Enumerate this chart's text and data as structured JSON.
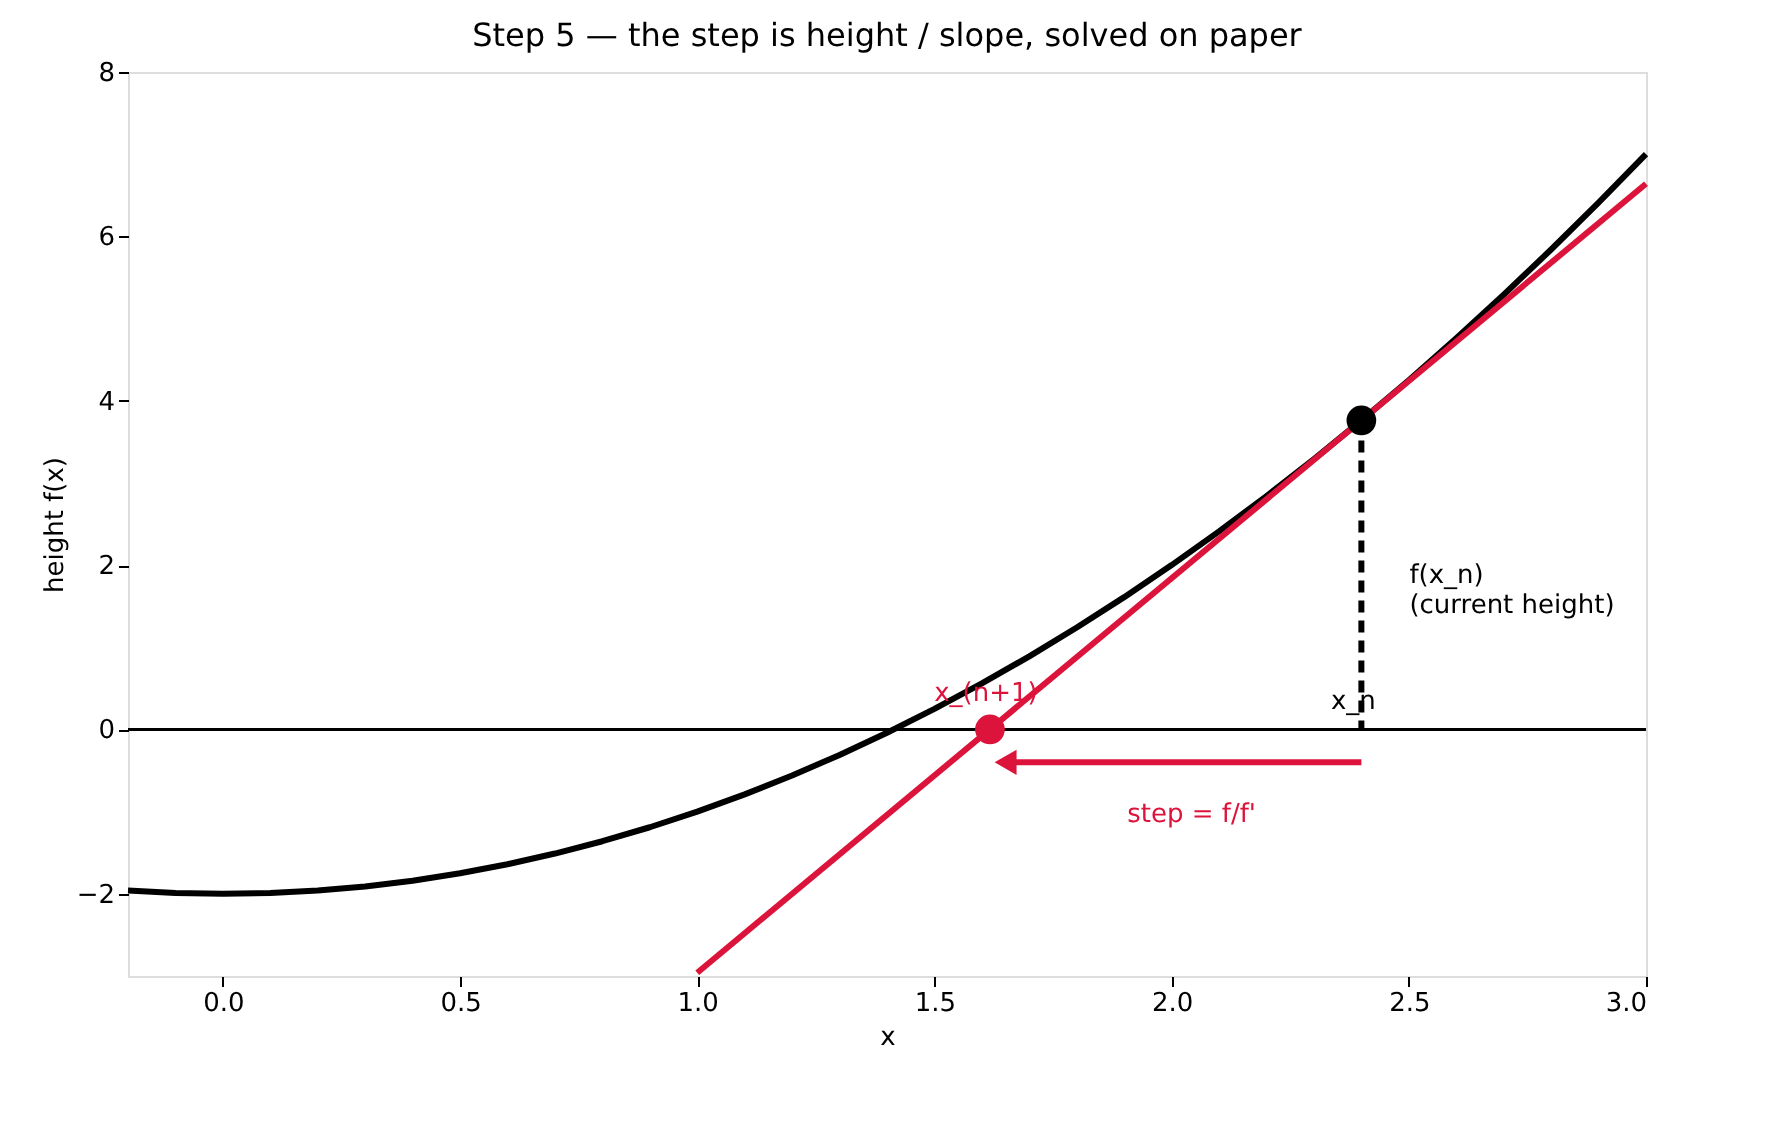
{
  "chart_data": {
    "type": "line",
    "title": "Step 5 — the step is height / slope, solved on paper",
    "xlabel": "x",
    "ylabel": "height  f(x)",
    "xlim": [
      -0.2,
      3.0
    ],
    "xticks": [
      {
        "value": 0,
        "label": "0.0"
      },
      0.5,
      {
        "value": 1,
        "label": "1.0"
      },
      1.5,
      {
        "value": 2,
        "label": "2.0"
      },
      2.5,
      {
        "value": 3,
        "label": "3.0"
      }
    ],
    "ylim": [
      -3,
      8
    ],
    "yticks": [
      -2,
      0,
      2,
      4,
      6,
      8
    ],
    "ref_lines": [
      {
        "axis": "y",
        "value": 0,
        "color": "#000000"
      }
    ],
    "series": [
      {
        "color": "#000000",
        "x": [
          -0.2,
          -0.1,
          0.0,
          0.1,
          0.2,
          0.3,
          0.4,
          0.5,
          0.6,
          0.7,
          0.8,
          0.9,
          1.0,
          1.1,
          1.2,
          1.3,
          1.4,
          1.5,
          1.6,
          1.7,
          1.8,
          1.9,
          2.0,
          2.1,
          2.2,
          2.3,
          2.4,
          2.5,
          2.6,
          2.7,
          2.8,
          2.9,
          3.0
        ],
        "values": [
          -1.96,
          -1.99,
          -2.0,
          -1.99,
          -1.96,
          -1.91,
          -1.84,
          -1.75,
          -1.64,
          -1.51,
          -1.36,
          -1.19,
          -1.0,
          -0.79,
          -0.56,
          -0.31,
          -0.04,
          0.25,
          0.56,
          0.89,
          1.24,
          1.61,
          2.0,
          2.41,
          2.84,
          3.29,
          3.76,
          4.25,
          4.76,
          5.29,
          5.84,
          6.41,
          7.0
        ]
      },
      {
        "color": "#dc143c",
        "x": [
          1.0,
          3.0
        ],
        "values": [
          -2.96,
          6.64
        ]
      },
      {
        "color": "#000000",
        "line_style": "dashed",
        "x": [
          2.4,
          2.4
        ],
        "values": [
          3.76,
          0
        ]
      },
      {
        "color": "#dc143c",
        "marker": "triangle",
        "x": [
          2.4,
          1.65
        ],
        "values": [
          -0.4,
          -0.4
        ]
      },
      {
        "type": "scatter",
        "color": "#000000",
        "marker": "circle",
        "x": [
          2.4
        ],
        "values": [
          3.76
        ]
      },
      {
        "type": "scatter",
        "color": "#dc143c",
        "marker": "circle",
        "x": [
          1.617
        ],
        "values": [
          0
        ]
      }
    ],
    "annotations": [
      {
        "text": "x_(n+1)",
        "x": 1.617,
        "y": 0
      },
      {
        "text": "x_n",
        "x": 2.4,
        "y": 0
      },
      {
        "text": "f(x_n)\n(current height)",
        "x": 2.4,
        "y": 1.88
      },
      {
        "text": "step = f/f'",
        "x": 2.0,
        "y": -0.4
      }
    ]
  }
}
